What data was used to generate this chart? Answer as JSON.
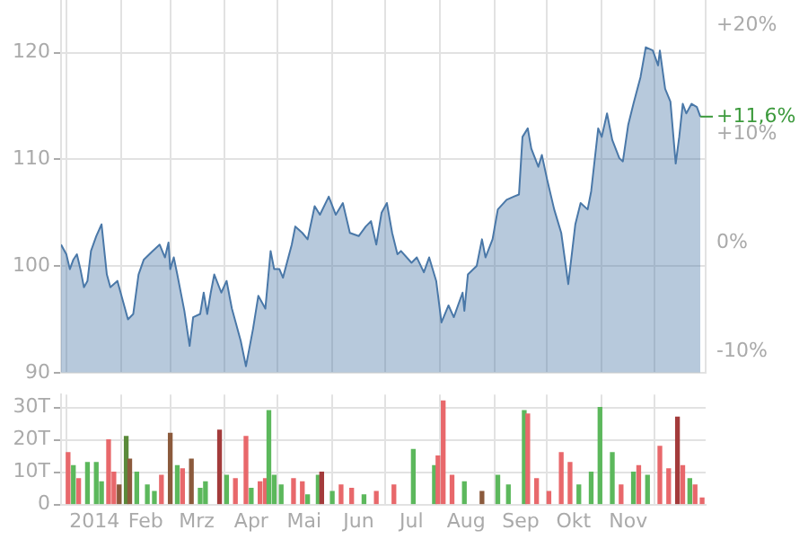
{
  "chart_data": [
    {
      "type": "area",
      "series": [
        {
          "color": "#4a78a8",
          "x": [
            "2013-12-29",
            "2014-01-01",
            "2014-01-03",
            "2014-01-05",
            "2014-01-07",
            "2014-01-09",
            "2014-01-11",
            "2014-01-13",
            "2014-01-15",
            "2014-01-18",
            "2014-01-21",
            "2014-01-24",
            "2014-01-26",
            "2014-01-30",
            "2014-02-05",
            "2014-02-08",
            "2014-02-11",
            "2014-02-14",
            "2014-02-19",
            "2014-02-23",
            "2014-02-26",
            "2014-02-28",
            "2014-03-01",
            "2014-03-03",
            "2014-03-05",
            "2014-03-09",
            "2014-03-12",
            "2014-03-14",
            "2014-03-18",
            "2014-03-20",
            "2014-03-22",
            "2014-03-24",
            "2014-03-26",
            "2014-03-30",
            "2014-04-02",
            "2014-04-05",
            "2014-04-10",
            "2014-04-13",
            "2014-04-17",
            "2014-04-20",
            "2014-04-24",
            "2014-04-27",
            "2014-04-29",
            "2014-05-02",
            "2014-05-04",
            "2014-05-09",
            "2014-05-11",
            "2014-05-15",
            "2014-05-18",
            "2014-05-22",
            "2014-05-25",
            "2014-05-30",
            "2014-06-03",
            "2014-06-07",
            "2014-06-11",
            "2014-06-16",
            "2014-06-20",
            "2014-06-23",
            "2014-06-26",
            "2014-06-29",
            "2014-07-02",
            "2014-07-05",
            "2014-07-08",
            "2014-07-10",
            "2014-07-16",
            "2014-07-19",
            "2014-07-23",
            "2014-07-26",
            "2014-07-30",
            "2014-08-02",
            "2014-08-06",
            "2014-08-09",
            "2014-08-14",
            "2014-08-15",
            "2014-08-17",
            "2014-08-22",
            "2014-08-25",
            "2014-08-27",
            "2014-08-31",
            "2014-09-03",
            "2014-09-08",
            "2014-09-12",
            "2014-09-15",
            "2014-09-17",
            "2014-09-20",
            "2014-09-22",
            "2014-09-26",
            "2014-09-28",
            "2014-10-01",
            "2014-10-05",
            "2014-10-09",
            "2014-10-13",
            "2014-10-17",
            "2014-10-20",
            "2014-10-24",
            "2014-10-26",
            "2014-10-30",
            "2014-11-01",
            "2014-11-04",
            "2014-11-07",
            "2014-11-11",
            "2014-11-13",
            "2014-11-16",
            "2014-11-19",
            "2014-11-23",
            "2014-11-26",
            "2014-11-30",
            "2014-12-03",
            "2014-12-04",
            "2014-12-07",
            "2014-12-10",
            "2014-12-13",
            "2014-12-15",
            "2014-12-17",
            "2014-12-19",
            "2014-12-22",
            "2014-12-25",
            "2014-12-27"
          ],
          "values": [
            102,
            101.1,
            99.7,
            100.6,
            101.1,
            99.7,
            98,
            98.6,
            101.4,
            102.8,
            103.9,
            99.2,
            98,
            98.6,
            95,
            95.5,
            99.2,
            100.6,
            101.4,
            102,
            100.8,
            102.2,
            99.7,
            100.8,
            99.2,
            95.8,
            92.5,
            95.2,
            95.5,
            97.5,
            95.5,
            97.5,
            99.2,
            97.5,
            98.6,
            96,
            93,
            90.6,
            94.1,
            97.2,
            96,
            101.4,
            99.7,
            99.7,
            98.9,
            102,
            103.7,
            103.1,
            102.5,
            105.6,
            104.8,
            106.5,
            104.8,
            105.9,
            103.1,
            102.8,
            103.7,
            104.2,
            102,
            105,
            105.9,
            103.1,
            101.1,
            101.4,
            100.3,
            100.8,
            99.4,
            100.8,
            98.6,
            94.7,
            96.3,
            95.2,
            97.5,
            95.8,
            99.2,
            100,
            102.5,
            100.8,
            102.5,
            105.3,
            106.2,
            106.5,
            106.7,
            112.1,
            112.9,
            111,
            109.3,
            110.4,
            108.1,
            105.3,
            103.1,
            98.3,
            103.9,
            105.9,
            105.3,
            107,
            112.9,
            112.1,
            114.3,
            111.8,
            110.1,
            109.8,
            113.2,
            115.2,
            117.7,
            120.5,
            120.2,
            118.8,
            120.2,
            116.6,
            115.4,
            109.6,
            112.1,
            115.2,
            114.3,
            115.2,
            114.9,
            114
          ]
        }
      ],
      "xlim": [
        "2013-12-29",
        "2014-12-30"
      ],
      "xticks": [
        {
          "value": "2014-01-01",
          "label": null
        },
        {
          "value": "2014-02-01",
          "label": null
        },
        {
          "value": "2014-03-01",
          "label": null
        },
        {
          "value": "2014-04-01",
          "label": null
        },
        {
          "value": "2014-05-01",
          "label": null
        },
        {
          "value": "2014-06-01",
          "label": null
        },
        {
          "value": "2014-07-01",
          "label": null
        },
        {
          "value": "2014-08-01",
          "label": null
        },
        {
          "value": "2014-09-01",
          "label": null
        },
        {
          "value": "2014-10-01",
          "label": null
        },
        {
          "value": "2014-11-01",
          "label": null
        },
        {
          "value": "2014-12-01",
          "label": null
        }
      ],
      "ylim": [
        90,
        125
      ],
      "yticks": [
        90,
        100,
        110,
        120
      ],
      "y2lim": [
        -11.9,
        22.4
      ],
      "y2ticks": [
        {
          "value": -10,
          "label": "-10%"
        },
        {
          "value": 0,
          "label": "0%"
        },
        {
          "value": 10,
          "label": "+10%"
        },
        {
          "value": 20,
          "label": "+20%"
        }
      ],
      "annotations": [
        {
          "text": "+11,6%",
          "x": "2014-12-27",
          "y": 114
        }
      ],
      "tick_labels": "y",
      "grid": true,
      "legend": false
    },
    {
      "type": "bar",
      "series": [
        {
          "x": [
            "2014-01-02",
            "2014-01-05",
            "2014-01-08",
            "2014-01-13",
            "2014-01-18",
            "2014-01-21",
            "2014-01-25",
            "2014-01-28",
            "2014-01-31",
            "2014-02-04",
            "2014-02-06",
            "2014-02-10",
            "2014-02-16",
            "2014-02-20",
            "2014-02-24",
            "2014-03-01",
            "2014-03-05",
            "2014-03-08",
            "2014-03-13",
            "2014-03-18",
            "2014-03-21",
            "2014-03-29",
            "2014-04-02",
            "2014-04-07",
            "2014-04-13",
            "2014-04-16",
            "2014-04-21",
            "2014-04-24",
            "2014-04-26",
            "2014-04-29",
            "2014-05-03",
            "2014-05-10",
            "2014-05-15",
            "2014-05-18",
            "2014-05-24",
            "2014-05-26",
            "2014-06-01",
            "2014-06-06",
            "2014-06-12",
            "2014-06-19",
            "2014-06-26",
            "2014-07-06",
            "2014-07-17",
            "2014-07-29",
            "2014-07-31",
            "2014-08-03",
            "2014-08-08",
            "2014-08-15",
            "2014-08-25",
            "2014-09-03",
            "2014-09-09",
            "2014-09-18",
            "2014-09-20",
            "2014-09-25",
            "2014-10-02",
            "2014-10-09",
            "2014-10-14",
            "2014-10-19",
            "2014-10-26",
            "2014-10-31",
            "2014-11-07",
            "2014-11-12",
            "2014-11-19",
            "2014-11-22",
            "2014-11-27",
            "2014-12-04",
            "2014-12-09",
            "2014-12-14",
            "2014-12-17",
            "2014-12-21",
            "2014-12-24",
            "2014-12-28"
          ],
          "values": [
            16,
            12,
            8,
            13,
            13,
            7,
            20,
            10,
            6,
            21,
            14,
            10,
            6,
            4,
            9,
            22,
            12,
            11,
            14,
            5,
            7,
            23,
            9,
            8,
            21,
            5,
            7,
            8,
            29,
            9,
            6,
            8,
            7,
            3,
            9,
            10,
            4,
            6,
            5,
            3,
            4,
            6,
            17,
            12,
            15,
            32,
            9,
            7,
            4,
            9,
            6,
            29,
            28,
            8,
            4,
            16,
            13,
            6,
            10,
            30,
            16,
            6,
            10,
            12,
            9,
            18,
            11,
            27,
            12,
            8,
            6,
            2
          ],
          "colors": [
            "#e8686b",
            "#5cb85c",
            "#e8686b",
            "#5cb85c",
            "#5cb85c",
            "#5cb85c",
            "#e8686b",
            "#e8686b",
            "#8b5a3c",
            "#5a8a3a",
            "#8b5a3c",
            "#5cb85c",
            "#5cb85c",
            "#5cb85c",
            "#e8686b",
            "#8b5a3c",
            "#5cb85c",
            "#e8686b",
            "#8b5a3c",
            "#5cb85c",
            "#5cb85c",
            "#a33b3b",
            "#5cb85c",
            "#e8686b",
            "#e8686b",
            "#5cb85c",
            "#e8686b",
            "#e8686b",
            "#5cb85c",
            "#5cb85c",
            "#5cb85c",
            "#e8686b",
            "#e8686b",
            "#5cb85c",
            "#5cb85c",
            "#a33b3b",
            "#5cb85c",
            "#e8686b",
            "#e8686b",
            "#5cb85c",
            "#e8686b",
            "#e8686b",
            "#5cb85c",
            "#5cb85c",
            "#e8686b",
            "#e8686b",
            "#e8686b",
            "#5cb85c",
            "#8b5a3c",
            "#5cb85c",
            "#5cb85c",
            "#5cb85c",
            "#e8686b",
            "#e8686b",
            "#e8686b",
            "#e8686b",
            "#e8686b",
            "#5cb85c",
            "#5cb85c",
            "#5cb85c",
            "#5cb85c",
            "#e8686b",
            "#5cb85c",
            "#e8686b",
            "#5cb85c",
            "#e8686b",
            "#e8686b",
            "#a33b3b",
            "#e8686b",
            "#5cb85c",
            "#e8686b",
            "#e8686b"
          ]
        }
      ],
      "xlim": [
        "2013-12-29",
        "2014-12-30"
      ],
      "xticks": [
        {
          "value": "2014-01-01",
          "label": null
        },
        {
          "value": "2014-01-17",
          "label": "2014"
        },
        {
          "value": "2014-02-01",
          "label": null
        },
        {
          "value": "2014-02-15",
          "label": "Feb"
        },
        {
          "value": "2014-03-01",
          "label": null
        },
        {
          "value": "2014-03-16",
          "label": "Mrz"
        },
        {
          "value": "2014-04-01",
          "label": null
        },
        {
          "value": "2014-04-16",
          "label": "Apr"
        },
        {
          "value": "2014-05-01",
          "label": null
        },
        {
          "value": "2014-05-16",
          "label": "Mai"
        },
        {
          "value": "2014-06-01",
          "label": null
        },
        {
          "value": "2014-06-16",
          "label": "Jun"
        },
        {
          "value": "2014-07-01",
          "label": null
        },
        {
          "value": "2014-07-16",
          "label": "Jul"
        },
        {
          "value": "2014-08-01",
          "label": null
        },
        {
          "value": "2014-08-16",
          "label": "Aug"
        },
        {
          "value": "2014-09-01",
          "label": null
        },
        {
          "value": "2014-09-16",
          "label": "Sep"
        },
        {
          "value": "2014-10-01",
          "label": null
        },
        {
          "value": "2014-10-16",
          "label": "Okt"
        },
        {
          "value": "2014-11-01",
          "label": null
        },
        {
          "value": "2014-11-16",
          "label": "Nov"
        },
        {
          "value": "2014-12-01",
          "label": null
        }
      ],
      "ylim": [
        0,
        34
      ],
      "yticks": [
        0,
        {
          "value": 10,
          "label": "10T"
        },
        {
          "value": 20,
          "label": "20T"
        },
        {
          "value": 30,
          "label": "30T"
        }
      ],
      "grid": true,
      "legend": false
    }
  ]
}
